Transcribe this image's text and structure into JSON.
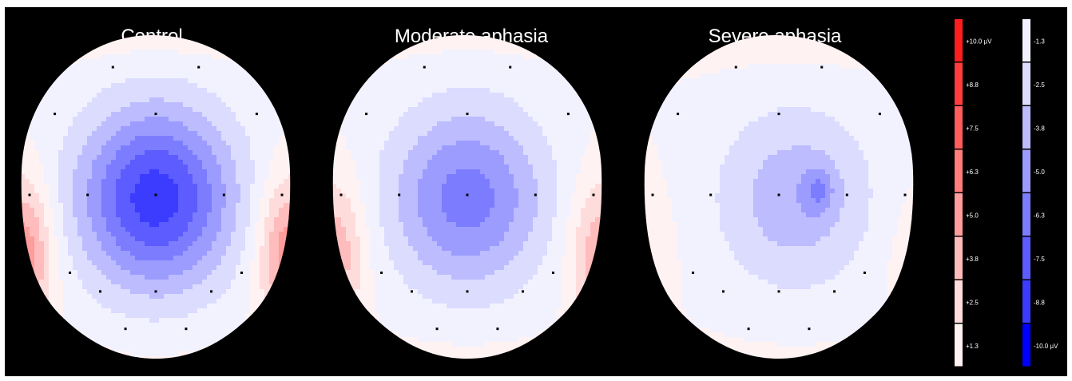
{
  "chart_data": {
    "type": "heatmap",
    "subtype": "scalp topographic maps",
    "background": "#000000",
    "maps": [
      {
        "title": "Control",
        "center_peak_uV": -8.2,
        "lateral_min_uV": 4.8,
        "frontal_uV": 0.9,
        "posterior_uV": 0.4,
        "center_shift": 0.0
      },
      {
        "title": "Moderate aphasia",
        "center_peak_uV": -5.6,
        "lateral_min_uV": 3.6,
        "frontal_uV": 0.6,
        "posterior_uV": 0.5,
        "center_shift": 0.0
      },
      {
        "title": "Severe aphasia",
        "center_peak_uV": -3.4,
        "lateral_min_uV": 0.8,
        "frontal_uV": 1.2,
        "posterior_uV": 0.3,
        "center_shift": 0.35,
        "right_focus_uV": -4.4
      }
    ],
    "positive_scale": {
      "labels": [
        "+10.0 µV",
        "+8.8",
        "+7.5",
        "+6.3",
        "+5.0",
        "+3.8",
        "+2.5",
        "+1.3"
      ],
      "colors": [
        "#ff1e1e",
        "#ff3c3c",
        "#ff5c5c",
        "#ff7c7c",
        "#ff9c9c",
        "#ffbcbc",
        "#ffdcdc",
        "#fff2f2"
      ]
    },
    "negative_scale": {
      "labels": [
        "-1.3",
        "-2.5",
        "-3.8",
        "-5.0",
        "-6.3",
        "-7.5",
        "-8.8",
        "-10.0 µV"
      ],
      "colors": [
        "#f2f2ff",
        "#dcdcff",
        "#bcbcff",
        "#9c9cff",
        "#7c7cff",
        "#5c5cff",
        "#3c3cff",
        "#0000ff"
      ]
    },
    "electrode_marker_color": "#000000"
  }
}
